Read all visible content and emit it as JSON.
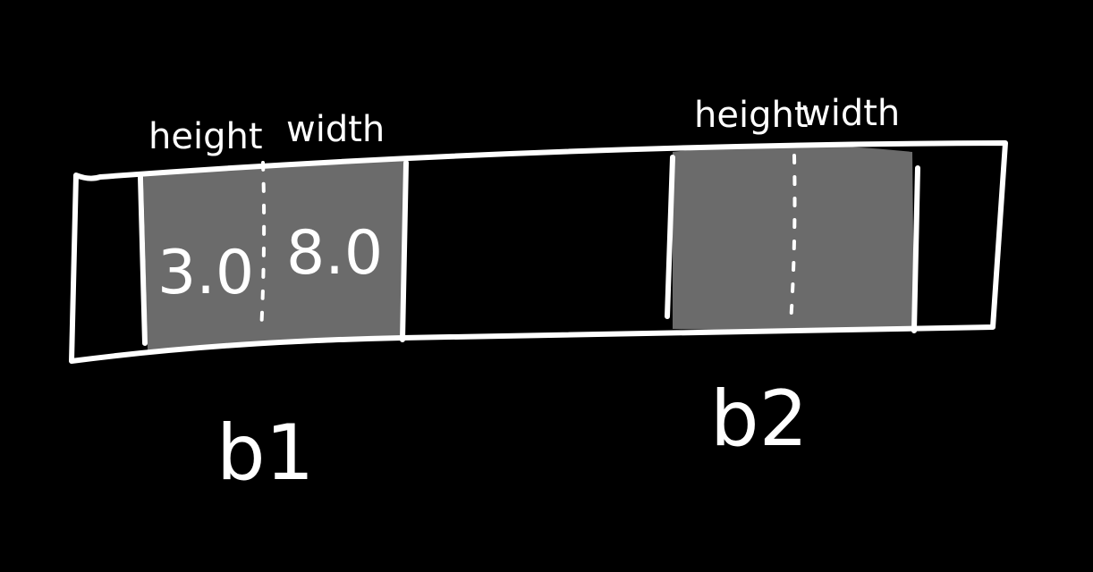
{
  "background_color": "#000000",
  "stroke_color": "#ffffff",
  "fill_color": "#6b6b6b",
  "blocks": [
    {
      "name": "b1",
      "fields": [
        {
          "label": "height",
          "value": "3.0"
        },
        {
          "label": "width",
          "value": "8.0"
        }
      ]
    },
    {
      "name": "b2",
      "fields": [
        {
          "label": "height",
          "value": ""
        },
        {
          "label": "width",
          "value": ""
        }
      ]
    }
  ]
}
